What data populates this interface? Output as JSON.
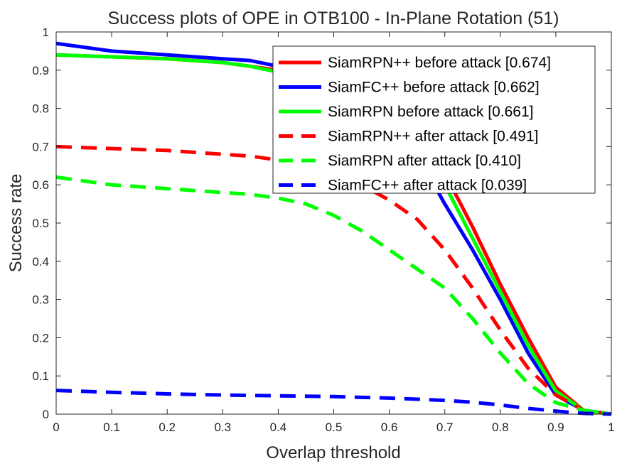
{
  "chart_data": {
    "type": "line",
    "title": "Success plots of OPE in OTB100 - In-Plane Rotation (51)",
    "xlabel": "Overlap threshold",
    "ylabel": "Success rate",
    "xlim": [
      0,
      1
    ],
    "ylim": [
      0,
      1
    ],
    "xticks": [
      "0",
      "0.1",
      "0.2",
      "0.3",
      "0.4",
      "0.5",
      "0.6",
      "0.7",
      "0.8",
      "0.9",
      "1"
    ],
    "yticks": [
      "0",
      "0.1",
      "0.2",
      "0.3",
      "0.4",
      "0.5",
      "0.6",
      "0.7",
      "0.8",
      "0.9",
      "1"
    ],
    "grid": false,
    "legend_position": "top-right",
    "series": [
      {
        "name": "SiamRPN++ before attack [0.674]",
        "color": "#ff0000",
        "style": "solid",
        "x": [
          0,
          0.1,
          0.2,
          0.3,
          0.35,
          0.4,
          0.45,
          0.5,
          0.55,
          0.6,
          0.65,
          0.7,
          0.75,
          0.8,
          0.85,
          0.9,
          0.95,
          1
        ],
        "y": [
          0.94,
          0.935,
          0.93,
          0.92,
          0.91,
          0.9,
          0.88,
          0.86,
          0.83,
          0.78,
          0.71,
          0.63,
          0.49,
          0.34,
          0.2,
          0.07,
          0.01,
          0
        ]
      },
      {
        "name": "SiamFC++ before attack [0.662]",
        "color": "#0000ff",
        "style": "solid",
        "x": [
          0,
          0.1,
          0.2,
          0.3,
          0.35,
          0.4,
          0.45,
          0.5,
          0.55,
          0.6,
          0.65,
          0.7,
          0.75,
          0.8,
          0.85,
          0.9,
          0.95,
          1
        ],
        "y": [
          0.97,
          0.95,
          0.94,
          0.93,
          0.925,
          0.91,
          0.89,
          0.86,
          0.82,
          0.76,
          0.68,
          0.55,
          0.43,
          0.3,
          0.16,
          0.05,
          0.01,
          0
        ]
      },
      {
        "name": "SiamRPN before attack [0.661]",
        "color": "#00ff00",
        "style": "solid",
        "x": [
          0,
          0.1,
          0.2,
          0.3,
          0.35,
          0.4,
          0.45,
          0.5,
          0.55,
          0.6,
          0.65,
          0.7,
          0.75,
          0.8,
          0.85,
          0.9,
          0.95,
          1
        ],
        "y": [
          0.94,
          0.935,
          0.93,
          0.92,
          0.91,
          0.895,
          0.87,
          0.85,
          0.81,
          0.76,
          0.69,
          0.6,
          0.46,
          0.32,
          0.18,
          0.06,
          0.01,
          0
        ]
      },
      {
        "name": "SiamRPN++ after attack [0.491]",
        "color": "#ff0000",
        "style": "dashed",
        "x": [
          0,
          0.1,
          0.2,
          0.3,
          0.35,
          0.4,
          0.45,
          0.5,
          0.55,
          0.6,
          0.65,
          0.7,
          0.75,
          0.8,
          0.85,
          0.9,
          0.95,
          1
        ],
        "y": [
          0.7,
          0.695,
          0.69,
          0.68,
          0.675,
          0.665,
          0.65,
          0.63,
          0.6,
          0.56,
          0.51,
          0.43,
          0.33,
          0.22,
          0.12,
          0.05,
          0.01,
          0
        ]
      },
      {
        "name": "SiamRPN after attack [0.410]",
        "color": "#00ff00",
        "style": "dashed",
        "x": [
          0,
          0.1,
          0.2,
          0.3,
          0.35,
          0.4,
          0.45,
          0.5,
          0.55,
          0.6,
          0.65,
          0.7,
          0.75,
          0.8,
          0.85,
          0.9,
          0.95,
          1
        ],
        "y": [
          0.62,
          0.6,
          0.59,
          0.58,
          0.575,
          0.565,
          0.55,
          0.52,
          0.48,
          0.43,
          0.38,
          0.33,
          0.25,
          0.16,
          0.08,
          0.03,
          0.01,
          0
        ]
      },
      {
        "name": "SiamFC++ after attack [0.039]",
        "color": "#0000ff",
        "style": "dashed",
        "x": [
          0,
          0.1,
          0.2,
          0.3,
          0.4,
          0.5,
          0.6,
          0.7,
          0.75,
          0.8,
          0.85,
          0.9,
          0.95,
          1
        ],
        "y": [
          0.062,
          0.057,
          0.053,
          0.05,
          0.048,
          0.046,
          0.042,
          0.036,
          0.031,
          0.024,
          0.015,
          0.008,
          0.002,
          0
        ]
      }
    ]
  }
}
